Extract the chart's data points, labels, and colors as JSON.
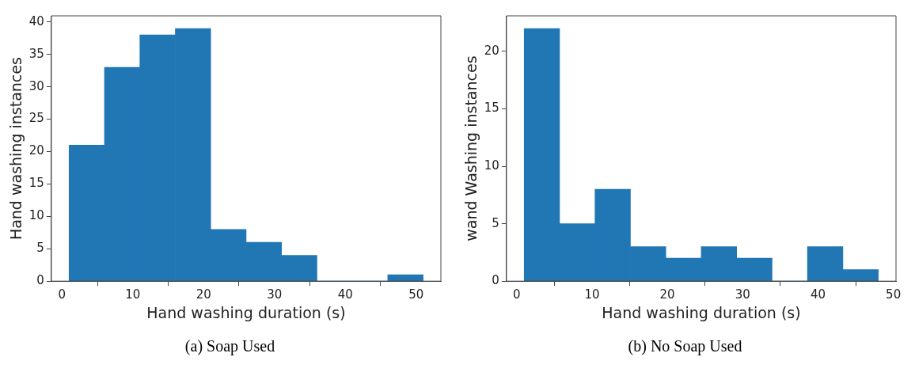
{
  "chart_data": [
    {
      "type": "histogram",
      "xlabel": "Hand washing duration (s)",
      "ylabel": "Hand washing instances",
      "annotations": [
        "(a) Soap Used"
      ],
      "bins": [
        1,
        6,
        11,
        16,
        21,
        26,
        31,
        36,
        41,
        46,
        51
      ],
      "values": [
        21,
        33,
        38,
        39,
        8,
        6,
        4,
        0,
        0,
        1
      ],
      "color": "#2077b4",
      "xlim": [
        -1.5,
        53.5
      ],
      "ylim": [
        0,
        40.95
      ],
      "xticks": [
        0,
        10,
        20,
        30,
        40,
        50
      ],
      "yticks": [
        0,
        5,
        10,
        15,
        20,
        25,
        30,
        35,
        40
      ]
    },
    {
      "type": "histogram",
      "xlabel": "Hand washing duration (s)",
      "ylabel": "wand Washing instances",
      "annotations": [
        "(b) No Soap Used"
      ],
      "bins": [
        1,
        5.7,
        10.4,
        15.1,
        19.8,
        24.5,
        29.2,
        33.9,
        38.6,
        43.3,
        48
      ],
      "values": [
        22,
        5,
        8,
        3,
        2,
        3,
        2,
        0,
        3,
        1
      ],
      "color": "#2077b4",
      "xlim": [
        -1.35,
        50.35
      ],
      "ylim": [
        0,
        23.1
      ],
      "xticks": [
        0,
        10,
        20,
        30,
        40,
        50
      ],
      "yticks": [
        0,
        5,
        10,
        15,
        20
      ]
    }
  ]
}
